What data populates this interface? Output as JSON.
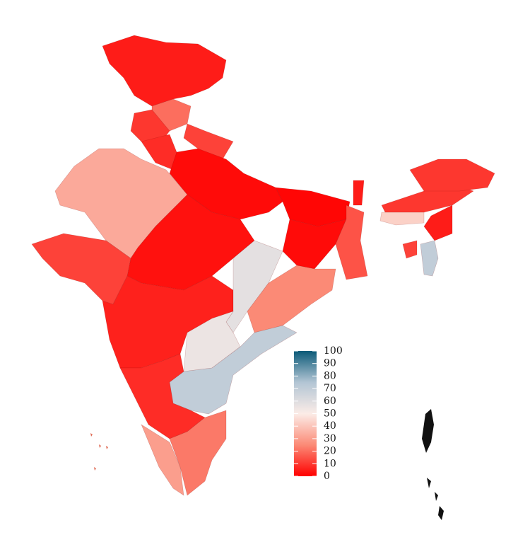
{
  "chart_data": {
    "type": "choropleth",
    "values": [
      5,
      20,
      10,
      12,
      33,
      8,
      2,
      3,
      1,
      2,
      15,
      12,
      6,
      58,
      25,
      55,
      70,
      8,
      30,
      22,
      10,
      10,
      43,
      70,
      5,
      12,
      5
    ],
    "colors": [
      "#ff0000",
      "#fb8a76",
      "#fbece7",
      "#b2c5d4",
      "#0b5a78"
    ],
    "colorbar": {
      "lim": [
        0,
        100
      ],
      "ticks": [
        0,
        10,
        20,
        30,
        40,
        50,
        60,
        70,
        80,
        90,
        100
      ]
    }
  }
}
